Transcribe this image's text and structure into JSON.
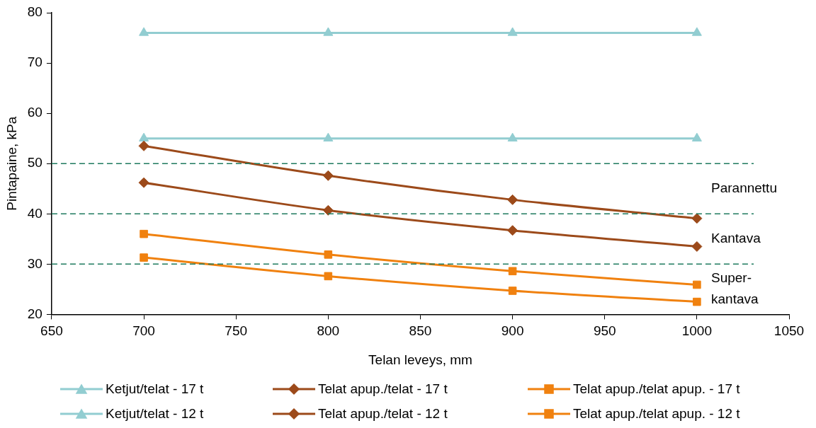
{
  "chart_data": {
    "type": "line",
    "xlabel": "Telan leveys, mm",
    "ylabel": "Pintapaine, kPa",
    "x": [
      700,
      800,
      900,
      1000
    ],
    "xlim": [
      650,
      1050
    ],
    "xticks": [
      650,
      700,
      750,
      800,
      850,
      900,
      950,
      1000,
      1050
    ],
    "ylim": [
      20,
      80
    ],
    "yticks": [
      20,
      30,
      40,
      50,
      60,
      70,
      80
    ],
    "grid": false,
    "legend": "bottom",
    "line_style": "solid",
    "series": [
      {
        "name": "Ketjut/telat - 17 t",
        "color": "#92cdd1",
        "marker": "triangle",
        "values": [
          76,
          76,
          76,
          76
        ]
      },
      {
        "name": "Telat apup./telat - 17 t",
        "color": "#9c4a1a",
        "marker": "diamond",
        "values": [
          53.5,
          47.6,
          42.8,
          39.1
        ]
      },
      {
        "name": "Telat apup./telat apup. - 17 t",
        "color": "#f0810f",
        "marker": "square",
        "values": [
          36,
          31.9,
          28.6,
          25.9
        ]
      },
      {
        "name": "Ketjut/telat - 12 t",
        "color": "#92cdd1",
        "marker": "triangle",
        "values": [
          55,
          55,
          55,
          55
        ]
      },
      {
        "name": "Telat apup./telat - 12 t",
        "color": "#9c4a1a",
        "marker": "diamond",
        "values": [
          46.2,
          40.7,
          36.7,
          33.5
        ]
      },
      {
        "name": "Telat apup./telat apup. - 12 t",
        "color": "#f0810f",
        "marker": "square",
        "values": [
          31.3,
          27.6,
          24.7,
          22.5
        ]
      }
    ],
    "ref_lines": [
      {
        "axis": "y",
        "value": 50,
        "color": "#1e7a5e",
        "line_style": "dashed"
      },
      {
        "axis": "y",
        "value": 40,
        "color": "#1e7a5e",
        "line_style": "dashed"
      },
      {
        "axis": "y",
        "value": 30,
        "color": "#1e7a5e",
        "line_style": "dashed"
      }
    ],
    "annotations": [
      "Parannettu",
      "Kantava",
      "Super-\nkantava"
    ]
  }
}
